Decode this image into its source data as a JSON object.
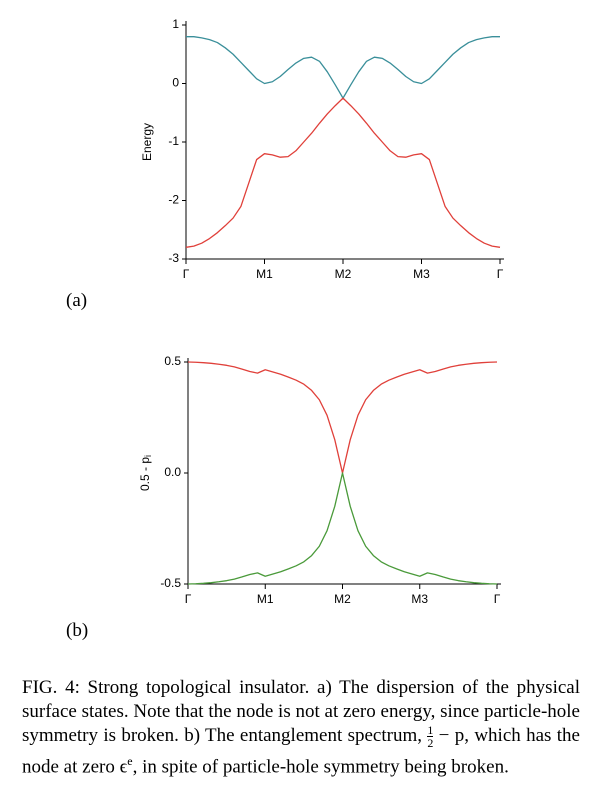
{
  "chart_data": [
    {
      "type": "line",
      "ylabel": "Energy",
      "x": [
        0,
        0.1,
        0.2,
        0.3,
        0.4,
        0.5,
        0.6,
        0.7,
        0.8,
        0.9,
        1,
        1.1,
        1.2,
        1.3,
        1.4,
        1.5,
        1.6,
        1.7,
        1.8,
        1.9,
        2,
        2.1,
        2.2,
        2.3,
        2.4,
        2.5,
        2.6,
        2.7,
        2.8,
        2.9,
        3,
        3.1,
        3.2,
        3.3,
        3.4,
        3.5,
        3.6,
        3.7,
        3.8,
        3.9,
        4
      ],
      "series": [
        {
          "color": "#3a8f9a",
          "values": [
            0.8,
            0.8,
            0.78,
            0.75,
            0.7,
            0.61,
            0.5,
            0.36,
            0.22,
            0.08,
            0.0,
            0.03,
            0.12,
            0.24,
            0.35,
            0.43,
            0.45,
            0.38,
            0.2,
            -0.02,
            -0.25,
            -0.02,
            0.2,
            0.38,
            0.45,
            0.43,
            0.35,
            0.24,
            0.12,
            0.03,
            0.0,
            0.08,
            0.22,
            0.36,
            0.5,
            0.61,
            0.7,
            0.75,
            0.78,
            0.8,
            0.8
          ]
        },
        {
          "color": "#e0403a",
          "values": [
            -2.8,
            -2.78,
            -2.73,
            -2.65,
            -2.55,
            -2.43,
            -2.3,
            -2.1,
            -1.7,
            -1.3,
            -1.2,
            -1.22,
            -1.26,
            -1.25,
            -1.15,
            -1.0,
            -0.85,
            -0.68,
            -0.52,
            -0.38,
            -0.25,
            -0.38,
            -0.52,
            -0.68,
            -0.85,
            -1.0,
            -1.15,
            -1.25,
            -1.26,
            -1.22,
            -1.2,
            -1.3,
            -1.7,
            -2.1,
            -2.3,
            -2.43,
            -2.55,
            -2.65,
            -2.73,
            -2.78,
            -2.8
          ]
        }
      ],
      "xlim": [
        0,
        4
      ],
      "xticks": [
        {
          "value": 0,
          "label": "Γ"
        },
        {
          "value": 1,
          "label": "M1"
        },
        {
          "value": 2,
          "label": "M2"
        },
        {
          "value": 3,
          "label": "M3"
        },
        {
          "value": 4,
          "label": "Γ"
        }
      ],
      "ylim": [
        -3,
        1
      ],
      "yticks": [
        1,
        0,
        -1,
        -2,
        -3
      ]
    },
    {
      "type": "line",
      "ylabel": "0.5 - p",
      "ylabel_subscript": "i",
      "x": [
        0,
        0.1,
        0.2,
        0.3,
        0.4,
        0.5,
        0.6,
        0.7,
        0.8,
        0.9,
        1,
        1.1,
        1.2,
        1.3,
        1.4,
        1.5,
        1.6,
        1.7,
        1.8,
        1.9,
        2,
        2.1,
        2.2,
        2.3,
        2.4,
        2.5,
        2.6,
        2.7,
        2.8,
        2.9,
        3,
        3.1,
        3.2,
        3.3,
        3.4,
        3.5,
        3.6,
        3.7,
        3.8,
        3.9,
        4
      ],
      "series": [
        {
          "color": "#e0403a",
          "values": [
            0.5,
            0.499,
            0.497,
            0.494,
            0.49,
            0.485,
            0.478,
            0.468,
            0.457,
            0.45,
            0.465,
            0.455,
            0.445,
            0.432,
            0.418,
            0.4,
            0.372,
            0.33,
            0.26,
            0.15,
            0.0,
            0.15,
            0.26,
            0.33,
            0.372,
            0.4,
            0.418,
            0.432,
            0.445,
            0.455,
            0.465,
            0.45,
            0.457,
            0.468,
            0.478,
            0.485,
            0.49,
            0.494,
            0.497,
            0.499,
            0.5
          ]
        },
        {
          "color": "#4a9a3a",
          "values": [
            -0.5,
            -0.499,
            -0.497,
            -0.494,
            -0.49,
            -0.485,
            -0.478,
            -0.468,
            -0.457,
            -0.45,
            -0.465,
            -0.455,
            -0.445,
            -0.432,
            -0.418,
            -0.4,
            -0.372,
            -0.33,
            -0.26,
            -0.15,
            0.0,
            -0.15,
            -0.26,
            -0.33,
            -0.372,
            -0.4,
            -0.418,
            -0.432,
            -0.445,
            -0.455,
            -0.465,
            -0.45,
            -0.457,
            -0.468,
            -0.478,
            -0.485,
            -0.49,
            -0.494,
            -0.497,
            -0.499,
            -0.5
          ]
        }
      ],
      "xlim": [
        0,
        4
      ],
      "xticks": [
        {
          "value": 0,
          "label": "Γ"
        },
        {
          "value": 1,
          "label": "M1"
        },
        {
          "value": 2,
          "label": "M2"
        },
        {
          "value": 3,
          "label": "M3"
        },
        {
          "value": 4,
          "label": "Γ"
        }
      ],
      "ylim": [
        -0.5,
        0.5
      ],
      "yticks": [
        0.5,
        {
          "value": 0,
          "label": "0.0"
        },
        -0.5
      ]
    }
  ],
  "panel_labels": [
    "(a)",
    "(b)"
  ],
  "caption": {
    "text_1": "FIG. 4: Strong topological insulator.  a) The dispersion of the physical surface states. Note that the node is not at zero energy, since particle-hole symmetry is broken. b) The entan­glement spectrum, ",
    "fraction_numerator": "1",
    "fraction_denominator": "2",
    "text_2": " − p, which has the node at zero ϵ",
    "superscript": "e",
    "text_3": ", in spite of particle-hole symmetry being broken."
  }
}
